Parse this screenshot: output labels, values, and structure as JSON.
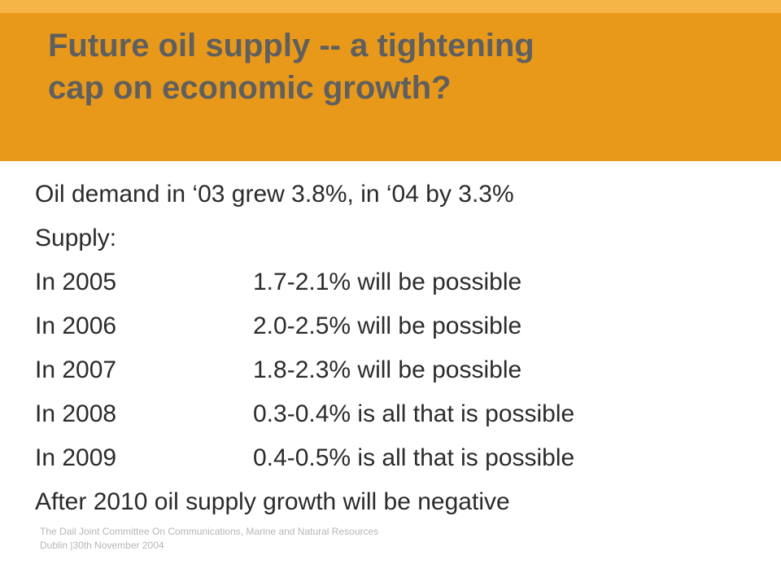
{
  "slide": {
    "title_line1": "Future oil supply -- a tightening",
    "title_line2": "cap on economic growth?",
    "colors": {
      "header_band": "#e8991a",
      "top_strip": "#f5b547",
      "title_text": "#5f5f5f",
      "body_text": "#2b2b2b",
      "footer_text": "#b6b6b6"
    }
  },
  "body": {
    "demand_line": "Oil demand in ‘03 grew 3.8%, in ‘04 by 3.3%",
    "supply_heading": "Supply:",
    "supply_rows": [
      {
        "year": "In 2005",
        "forecast": "1.7-2.1% will be possible"
      },
      {
        "year": "In 2006",
        "forecast": "2.0-2.5% will be possible"
      },
      {
        "year": "In 2007",
        "forecast": "1.8-2.3% will be possible"
      },
      {
        "year": "In 2008",
        "forecast": "0.3-0.4% is all that is possible"
      },
      {
        "year": "In 2009",
        "forecast": "0.4-0.5% is all that is possible"
      }
    ],
    "closing_line": "After 2010 oil supply growth will be negative"
  },
  "footer": {
    "line1": "The Dail Joint Committee On Communications, Marine and Natural Resources",
    "line2": "Dublin |30th November 2004"
  }
}
